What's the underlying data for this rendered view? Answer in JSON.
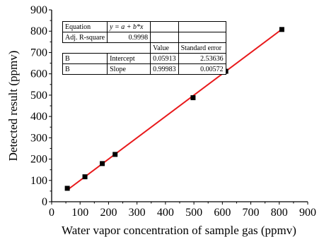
{
  "chart_data": {
    "type": "scatter",
    "xlabel": "Water vapor concentration of sample gas (ppmv)",
    "ylabel": "Detected result (ppmv)",
    "xlim": [
      0,
      900
    ],
    "ylim": [
      0,
      900
    ],
    "xticks": [
      "0",
      "100",
      "200",
      "300",
      "400",
      "500",
      "600",
      "700",
      "800",
      "900"
    ],
    "yticks": [
      "0",
      "100",
      "200",
      "300",
      "400",
      "500",
      "600",
      "700",
      "800",
      "900"
    ],
    "grid": false,
    "series": [
      {
        "marker": "square",
        "color": "#000000",
        "points": [
          {
            "x": 55,
            "y": 63
          },
          {
            "x": 117,
            "y": 117
          },
          {
            "x": 178,
            "y": 179
          },
          {
            "x": 223,
            "y": 222
          },
          {
            "x": 497,
            "y": 488
          },
          {
            "x": 605,
            "y": 622
          },
          {
            "x": 612,
            "y": 612
          },
          {
            "x": 809,
            "y": 808
          }
        ]
      },
      {
        "line": true,
        "color": "#e8191b",
        "x": [
          55,
          809
        ],
        "y": [
          55,
          809
        ]
      }
    ],
    "fit_table": {
      "equation_label": "Equation",
      "equation": "y = a + b*x",
      "adj_r_square_label": "Adj. R-square",
      "adj_r_square": "0.9998",
      "value_header": "Value",
      "std_error_header": "Standard error",
      "rows": [
        {
          "col1": "B",
          "param": "Intercept",
          "value": "0.05913",
          "std_error": "2.53636"
        },
        {
          "col1": "B",
          "param": "Slope",
          "value": "0.99983",
          "std_error": "0.00572"
        }
      ]
    }
  }
}
